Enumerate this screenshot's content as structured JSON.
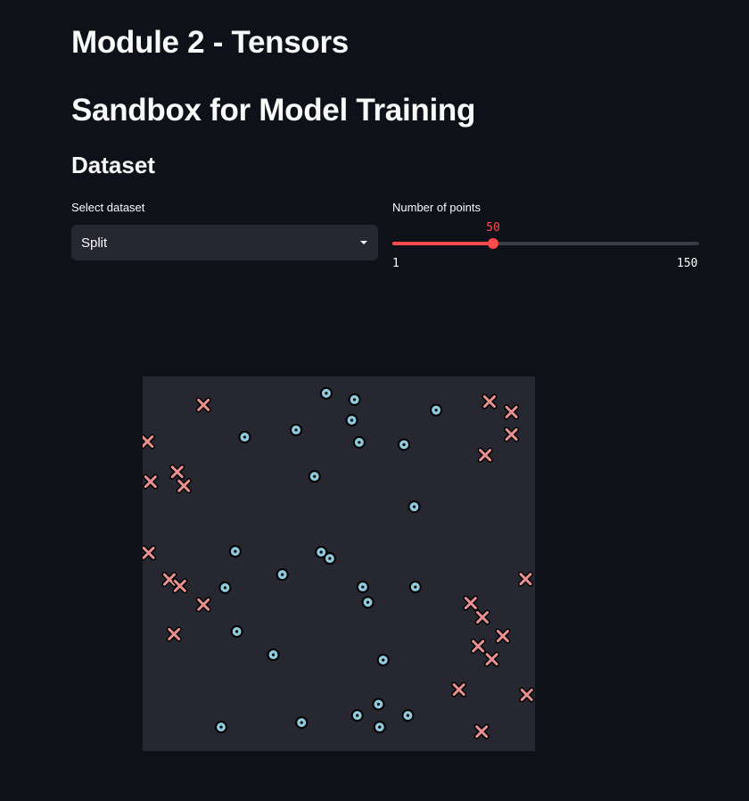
{
  "header": {
    "module_title": "Module 2 - Tensors",
    "page_title": "Sandbox for Model Training",
    "section_title": "Dataset"
  },
  "controls": {
    "dataset_label": "Select dataset",
    "dataset_value": "Split",
    "points_label": "Number of points",
    "points_value": "50",
    "points_min": "1",
    "points_max": "150",
    "points_fraction": 0.329
  },
  "colors": {
    "background": "#0e1117",
    "panel": "#262730",
    "accent": "#ff4b4b",
    "class0": "#e8908f",
    "class1": "#8ecadb"
  },
  "chart_data": {
    "type": "scatter",
    "xlim": [
      0,
      1
    ],
    "ylim": [
      0,
      1
    ],
    "grid": false,
    "series": [
      {
        "marker": "x",
        "color": "#e8908f",
        "points": [
          [
            0.155,
            0.924
          ],
          [
            0.884,
            0.933
          ],
          [
            0.94,
            0.905
          ],
          [
            0.94,
            0.845
          ],
          [
            0.873,
            0.79
          ],
          [
            0.012,
            0.826
          ],
          [
            0.088,
            0.745
          ],
          [
            0.02,
            0.719
          ],
          [
            0.105,
            0.708
          ],
          [
            0.015,
            0.529
          ],
          [
            0.068,
            0.458
          ],
          [
            0.095,
            0.441
          ],
          [
            0.155,
            0.391
          ],
          [
            0.976,
            0.459
          ],
          [
            0.836,
            0.395
          ],
          [
            0.866,
            0.357
          ],
          [
            0.08,
            0.312
          ],
          [
            0.918,
            0.307
          ],
          [
            0.855,
            0.28
          ],
          [
            0.89,
            0.245
          ],
          [
            0.806,
            0.164
          ],
          [
            0.979,
            0.15
          ],
          [
            0.864,
            0.052
          ]
        ]
      },
      {
        "marker": "o",
        "color": "#8ecadb",
        "points": [
          [
            0.468,
            0.955
          ],
          [
            0.54,
            0.938
          ],
          [
            0.748,
            0.91
          ],
          [
            0.533,
            0.883
          ],
          [
            0.26,
            0.838
          ],
          [
            0.391,
            0.857
          ],
          [
            0.552,
            0.824
          ],
          [
            0.666,
            0.818
          ],
          [
            0.438,
            0.733
          ],
          [
            0.692,
            0.652
          ],
          [
            0.236,
            0.533
          ],
          [
            0.455,
            0.531
          ],
          [
            0.477,
            0.514
          ],
          [
            0.356,
            0.471
          ],
          [
            0.21,
            0.436
          ],
          [
            0.561,
            0.438
          ],
          [
            0.695,
            0.438
          ],
          [
            0.574,
            0.397
          ],
          [
            0.24,
            0.319
          ],
          [
            0.333,
            0.257
          ],
          [
            0.613,
            0.243
          ],
          [
            0.601,
            0.125
          ],
          [
            0.547,
            0.095
          ],
          [
            0.676,
            0.095
          ],
          [
            0.405,
            0.076
          ],
          [
            0.2,
            0.064
          ],
          [
            0.604,
            0.064
          ]
        ]
      }
    ]
  }
}
